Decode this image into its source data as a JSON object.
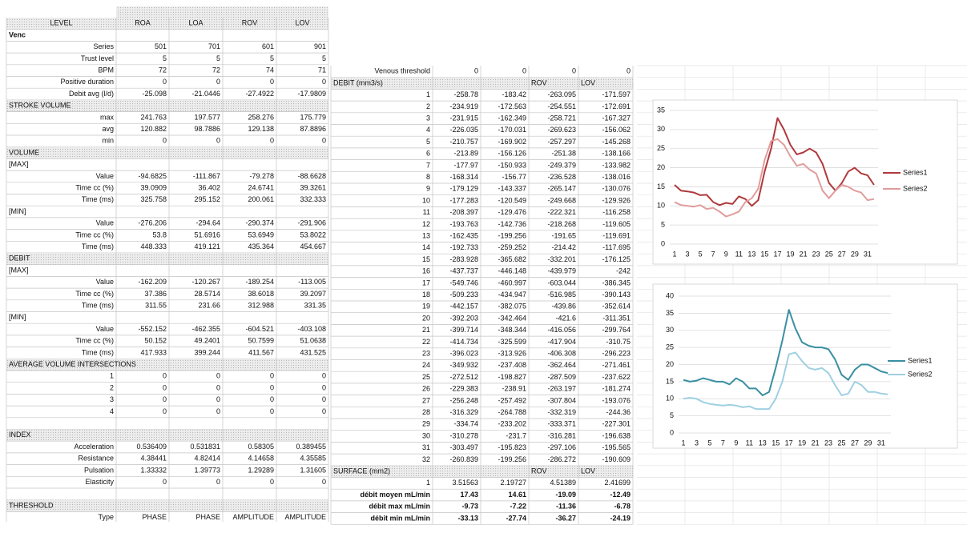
{
  "left_table": {
    "header": [
      "LEVEL",
      "ROA",
      "LOA",
      "ROV",
      "LOV"
    ],
    "rows": [
      [
        "Venc"
      ],
      [
        "Series",
        "501",
        "701",
        "601",
        "901"
      ],
      [
        "Trust level",
        "5",
        "5",
        "5",
        "5"
      ],
      [
        "BPM",
        "72",
        "72",
        "74",
        "71"
      ],
      [
        "Positive duration",
        "0",
        "0",
        "0",
        "0"
      ],
      [
        "Debit avg (l/d)",
        "-25.098",
        "-21.0446",
        "-27.4922",
        "-17.9809"
      ],
      [
        "STROKE VOLUME"
      ],
      [
        "max",
        "241.763",
        "197.577",
        "258.276",
        "175.779"
      ],
      [
        "avg",
        "120.882",
        "98.7886",
        "129.138",
        "87.8896"
      ],
      [
        "min",
        "0",
        "0",
        "0",
        "0"
      ],
      [
        "VOLUME"
      ],
      [
        "[MAX]"
      ],
      [
        "Value",
        "-94.6825",
        "-111.867",
        "-79.278",
        "-88.6628"
      ],
      [
        "Time cc (%)",
        "39.0909",
        "36.402",
        "24.6741",
        "39.3261"
      ],
      [
        "Time (ms)",
        "325.758",
        "295.152",
        "200.061",
        "332.333"
      ],
      [
        "[MIN]"
      ],
      [
        "Value",
        "-276.206",
        "-294.64",
        "-290.374",
        "-291.906"
      ],
      [
        "Time cc (%)",
        "53.8",
        "51.6916",
        "53.6949",
        "53.8022"
      ],
      [
        "Time (ms)",
        "448.333",
        "419.121",
        "435.364",
        "454.667"
      ],
      [
        "DEBIT"
      ],
      [
        "[MAX]"
      ],
      [
        "Value",
        "-162.209",
        "-120.267",
        "-189.254",
        "-113.005"
      ],
      [
        "Time cc (%)",
        "37.386",
        "28.5714",
        "38.6018",
        "39.2097"
      ],
      [
        "Time (ms)",
        "311.55",
        "231.66",
        "312.988",
        "331.35"
      ],
      [
        "[MIN]"
      ],
      [
        "Value",
        "-552.152",
        "-462.355",
        "-604.521",
        "-403.108"
      ],
      [
        "Time cc (%)",
        "50.152",
        "49.2401",
        "50.7599",
        "51.0638"
      ],
      [
        "Time (ms)",
        "417.933",
        "399.244",
        "411.567",
        "431.525"
      ],
      [
        "AVERAGE VOLUME INTERSECTIONS"
      ],
      [
        "1",
        "0",
        "0",
        "0",
        "0"
      ],
      [
        "2",
        "0",
        "0",
        "0",
        "0"
      ],
      [
        "3",
        "0",
        "0",
        "0",
        "0"
      ],
      [
        "4",
        "0",
        "0",
        "0",
        "0"
      ],
      [],
      [
        "INDEX"
      ],
      [
        "Acceleration",
        "0.536409",
        "0.531831",
        "0.58305",
        "0.389455"
      ],
      [
        "Resistance",
        "4.38441",
        "4.82414",
        "4.14658",
        "4.35585"
      ],
      [
        "Pulsation",
        "1.33332",
        "1.39773",
        "1.29289",
        "1.31605"
      ],
      [
        "Elasticity",
        "0",
        "0",
        "0",
        "0"
      ],
      [],
      [
        "THRESHOLD"
      ],
      [
        "Type",
        "PHASE",
        "PHASE",
        "AMPLITUDE",
        "AMPLITUDE"
      ]
    ]
  },
  "middle_table": {
    "rows": [
      [
        "Venous threshold",
        "0",
        "0",
        "0",
        "0"
      ],
      [
        "DEBIT (mm3/s)",
        null,
        null,
        "ROV",
        "LOV"
      ],
      [
        "1",
        "-258.78",
        "-183.42",
        "-263.095",
        "-171.597"
      ],
      [
        "2",
        "-234.919",
        "-172.563",
        "-254.551",
        "-172.691"
      ],
      [
        "3",
        "-231.915",
        "-162.349",
        "-258.721",
        "-167.327"
      ],
      [
        "4",
        "-226.035",
        "-170.031",
        "-269.623",
        "-156.062"
      ],
      [
        "5",
        "-210.757",
        "-169.902",
        "-257.297",
        "-145.268"
      ],
      [
        "6",
        "-213.89",
        "-156.126",
        "-251.38",
        "-138.166"
      ],
      [
        "7",
        "-177.97",
        "-150.933",
        "-249.379",
        "-133.982"
      ],
      [
        "8",
        "-168.314",
        "-156.77",
        "-236.528",
        "-138.016"
      ],
      [
        "9",
        "-179.129",
        "-143.337",
        "-265.147",
        "-130.076"
      ],
      [
        "10",
        "-177.283",
        "-120.549",
        "-249.668",
        "-129.926"
      ],
      [
        "11",
        "-208.397",
        "-129.476",
        "-222.321",
        "-116.258"
      ],
      [
        "12",
        "-193.763",
        "-142.736",
        "-218.268",
        "-119.605"
      ],
      [
        "13",
        "-162.435",
        "-199.256",
        "-191.65",
        "-119.691"
      ],
      [
        "14",
        "-192.733",
        "-259.252",
        "-214.42",
        "-117.695"
      ],
      [
        "15",
        "-283.928",
        "-365.682",
        "-332.201",
        "-176.125"
      ],
      [
        "16",
        "-437.737",
        "-446.148",
        "-439.979",
        "-242"
      ],
      [
        "17",
        "-549.746",
        "-460.997",
        "-603.044",
        "-386.345"
      ],
      [
        "18",
        "-509.233",
        "-434.947",
        "-516.985",
        "-390.143"
      ],
      [
        "19",
        "-442.157",
        "-382.075",
        "-439.86",
        "-352.614"
      ],
      [
        "20",
        "-392.203",
        "-342.464",
        "-421.6",
        "-311.351"
      ],
      [
        "21",
        "-399.714",
        "-348.344",
        "-416.056",
        "-299.764"
      ],
      [
        "22",
        "-414.734",
        "-325.599",
        "-417.904",
        "-310.75"
      ],
      [
        "23",
        "-396.023",
        "-313.926",
        "-406.308",
        "-296.223"
      ],
      [
        "24",
        "-349.932",
        "-237.408",
        "-362.464",
        "-271.461"
      ],
      [
        "25",
        "-272.512",
        "-198.827",
        "-287.509",
        "-237.622"
      ],
      [
        "26",
        "-229.383",
        "-238.91",
        "-263.197",
        "-181.274"
      ],
      [
        "27",
        "-256.248",
        "-257.492",
        "-307.804",
        "-193.076"
      ],
      [
        "28",
        "-316.329",
        "-264.788",
        "-332.319",
        "-244.36"
      ],
      [
        "29",
        "-334.74",
        "-233.202",
        "-333.371",
        "-227.301"
      ],
      [
        "30",
        "-310.278",
        "-231.7",
        "-316.281",
        "-196.638"
      ],
      [
        "31",
        "-303.497",
        "-195.823",
        "-297.106",
        "-195.565"
      ],
      [
        "32",
        "-260.839",
        "-199.256",
        "-286.272",
        "-190.609"
      ],
      [
        "SURFACE (mm2)",
        null,
        null,
        "ROV",
        "LOV"
      ],
      [
        "1",
        "3.51563",
        "2.19727",
        "4.51389",
        "2.41699"
      ],
      [
        "débit moyen mL/min",
        "17.43",
        "14.61",
        "-19.09",
        "-12.49"
      ],
      [
        "débit max mL/min",
        "-9.73",
        "-7.22",
        "-11.36",
        "-6.78"
      ],
      [
        "débit min mL/min",
        "-33.13",
        "-27.74",
        "-36.27",
        "-24.19"
      ]
    ]
  },
  "chart_data": [
    {
      "type": "line",
      "categories": [
        1,
        null,
        3,
        null,
        5,
        null,
        7,
        null,
        9,
        null,
        11,
        null,
        13,
        null,
        15,
        null,
        17,
        null,
        19,
        null,
        21,
        null,
        23,
        null,
        25,
        null,
        27,
        null,
        29,
        null,
        31,
        null
      ],
      "ylim": [
        0,
        35
      ],
      "yticks": [
        0,
        5,
        10,
        15,
        20,
        25,
        30,
        35
      ],
      "grid": true,
      "legend": "right",
      "series": [
        {
          "name": "Series1",
          "color": "#b0393c",
          "values": [
            15.5,
            14,
            13.8,
            13.5,
            12.8,
            12.9,
            11,
            10.2,
            10.8,
            10.5,
            12.5,
            11.8,
            10,
            11.5,
            19,
            25,
            33,
            30,
            26,
            23.5,
            24,
            25,
            24,
            21,
            16,
            14,
            16,
            19,
            20,
            18.5,
            18,
            15.5
          ]
        },
        {
          "name": "Series2",
          "color": "#e29c9c",
          "values": [
            11,
            10.2,
            10,
            9.8,
            10.2,
            9.2,
            9.5,
            8.5,
            7.2,
            7.8,
            8.5,
            11,
            12,
            14.5,
            22,
            27,
            27.5,
            26,
            23,
            20.5,
            21,
            19.5,
            18.5,
            14,
            12,
            14,
            15.5,
            15,
            14,
            13.5,
            11.5,
            11.8
          ]
        }
      ]
    },
    {
      "type": "line",
      "categories": [
        1,
        null,
        3,
        null,
        5,
        null,
        7,
        null,
        9,
        null,
        11,
        null,
        13,
        null,
        15,
        null,
        17,
        null,
        19,
        null,
        21,
        null,
        23,
        null,
        25,
        null,
        27,
        null,
        29,
        null,
        31,
        null
      ],
      "ylim": [
        0,
        40
      ],
      "yticks": [
        0,
        5,
        10,
        15,
        20,
        25,
        30,
        35,
        40
      ],
      "grid": true,
      "legend": "right",
      "series": [
        {
          "name": "Series1",
          "color": "#3a8fa2",
          "values": [
            15.5,
            15,
            15.3,
            16,
            15.5,
            15,
            15,
            14.2,
            16,
            15,
            13,
            13,
            11,
            12,
            19,
            27,
            36,
            30.5,
            26.5,
            25.5,
            25,
            25,
            24.5,
            21.5,
            17,
            15.5,
            18.5,
            20,
            20,
            19,
            18,
            17.5
          ]
        },
        {
          "name": "Series2",
          "color": "#9fd0e2",
          "values": [
            10,
            10.3,
            10,
            9,
            8.5,
            8.2,
            8,
            8.2,
            8,
            7.5,
            7.8,
            7,
            7,
            7,
            10,
            15,
            23,
            23.5,
            21,
            19,
            18.5,
            19,
            17.5,
            14,
            11,
            11.5,
            15,
            14,
            12,
            12,
            11.5,
            11.3
          ]
        }
      ]
    }
  ]
}
